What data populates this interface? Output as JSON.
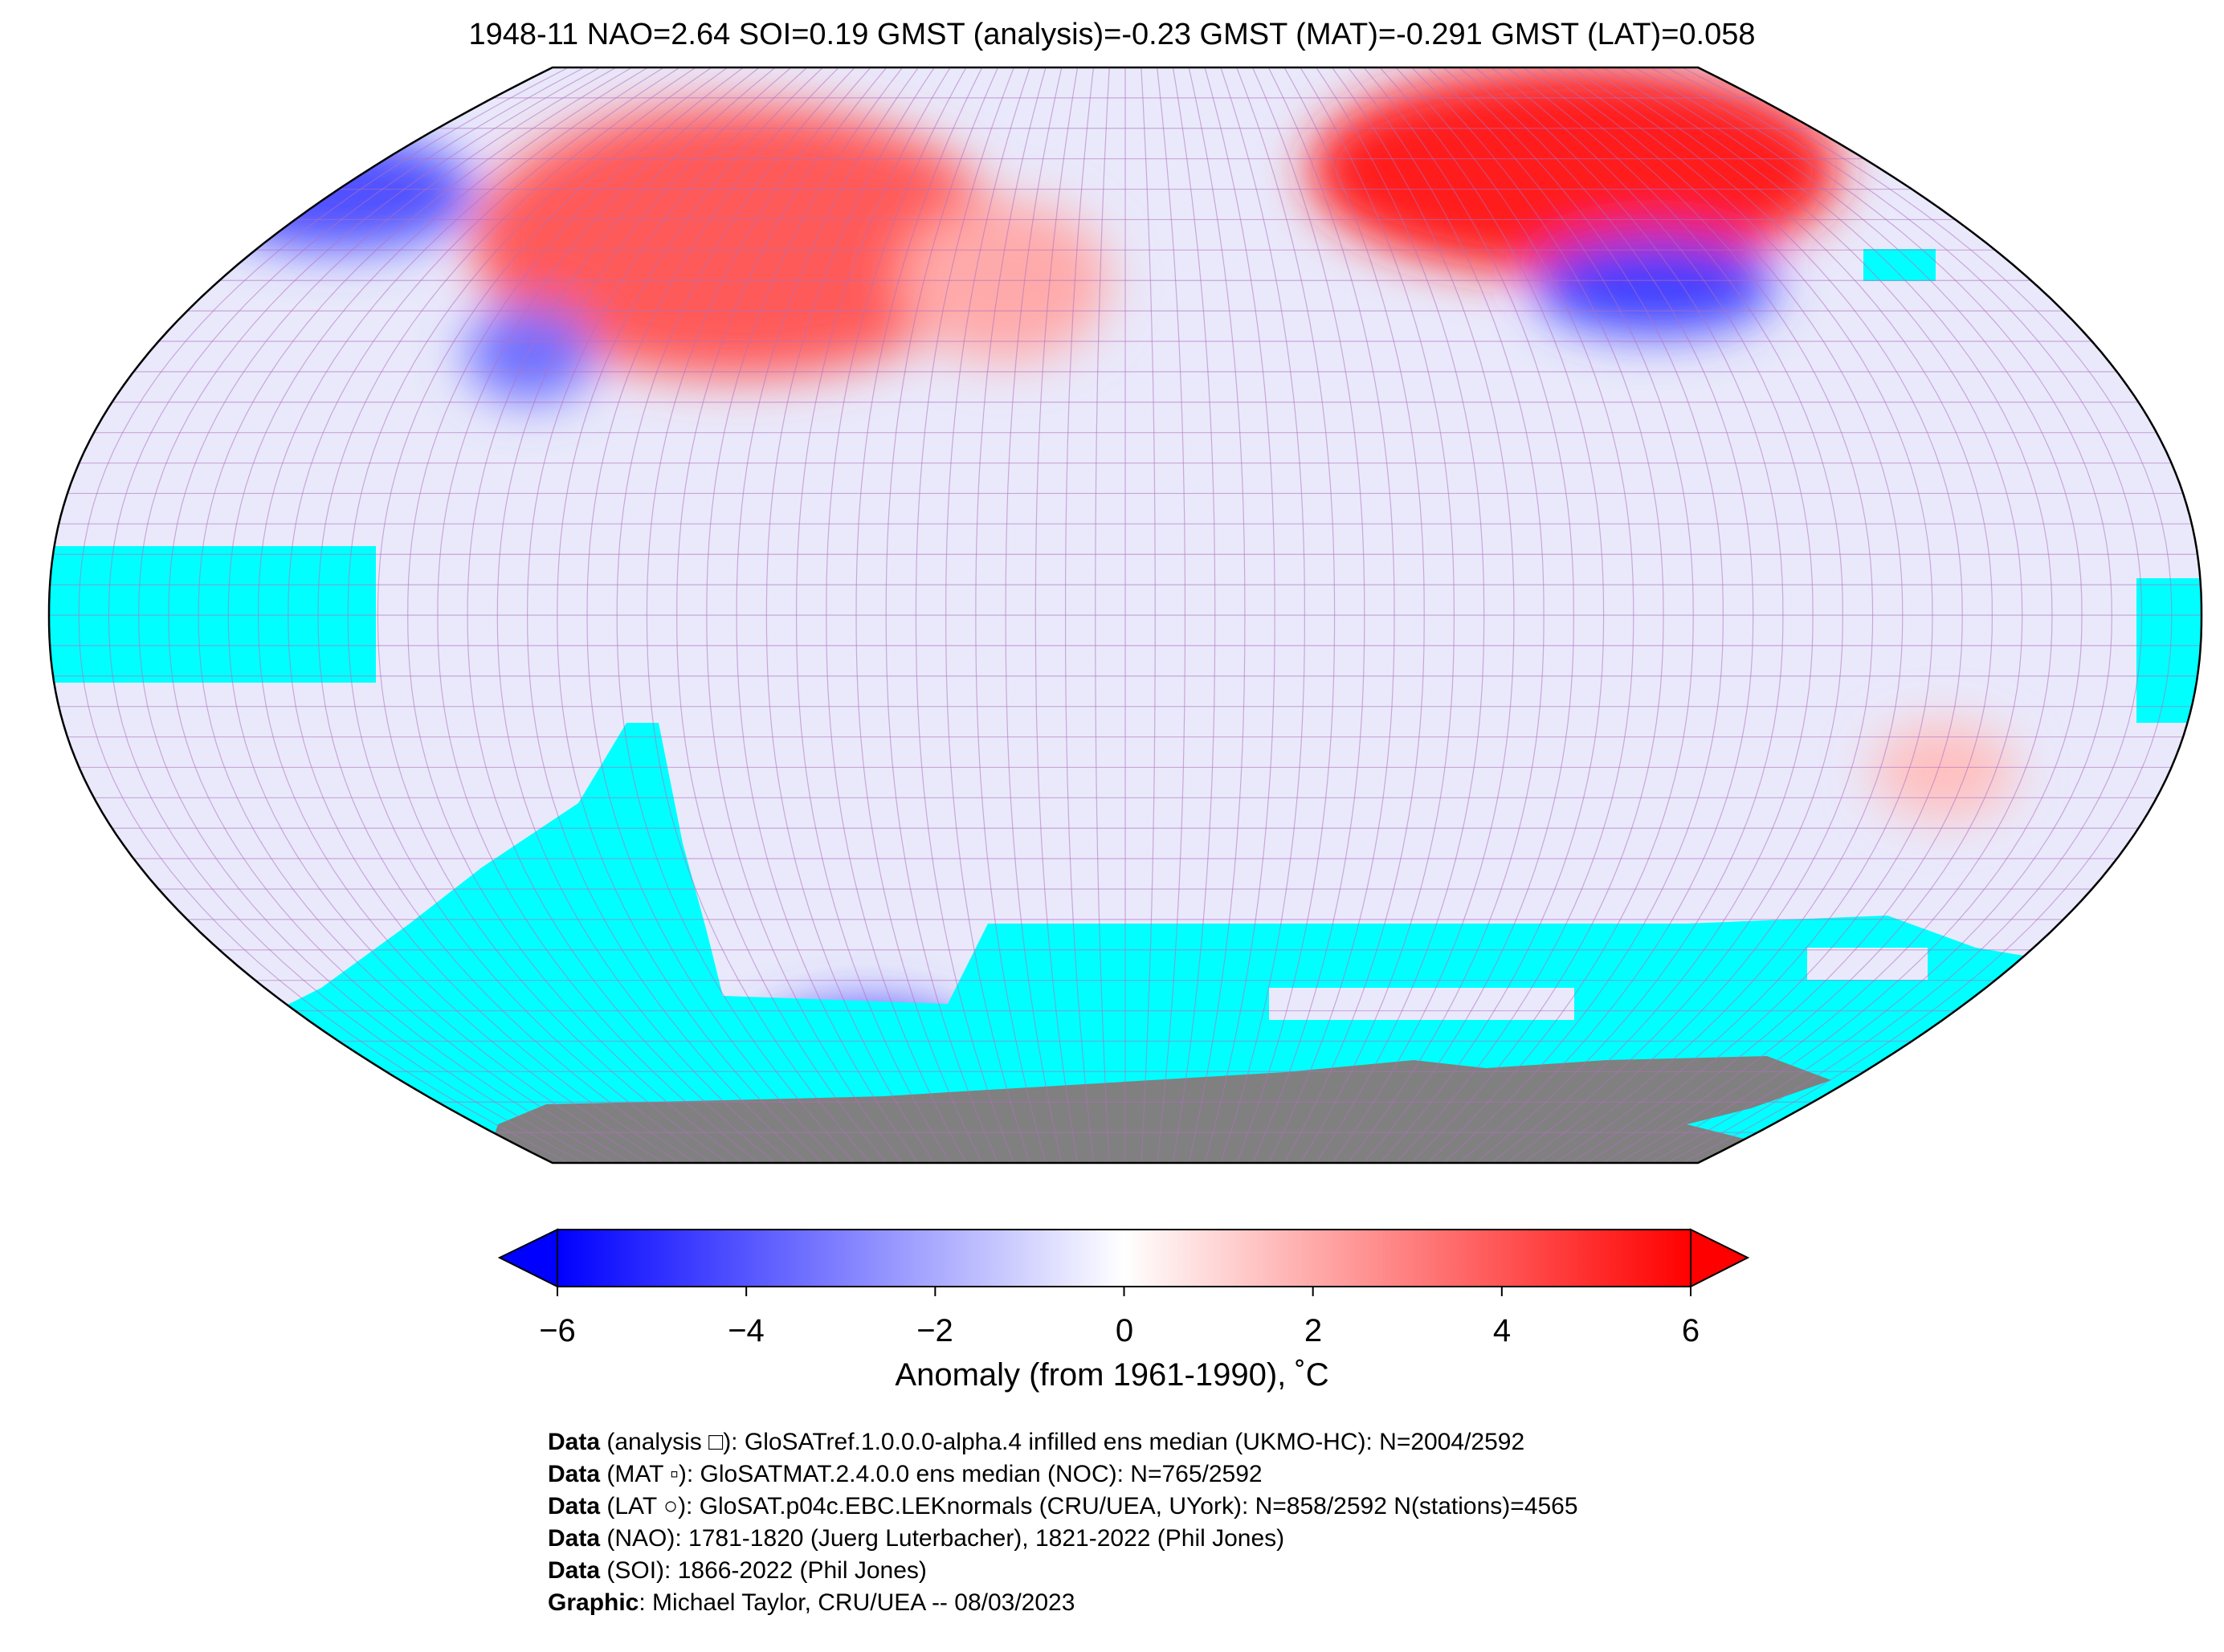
{
  "title": "1948-11 NAO=2.64 SOI=0.19 GMST (analysis)=-0.23 GMST (MAT)=-0.291 GMST (LAT)=0.058",
  "map": {
    "projection": "Robinson",
    "grid": "5x5 degree cells",
    "colors": {
      "no_data_ocean": "#00ffff",
      "antarctica": "#808080",
      "warm": "#ff0000",
      "cold": "#0000ff",
      "neutral": "#ffffff"
    }
  },
  "colorbar": {
    "ticks": [
      "−6",
      "−4",
      "−2",
      "0",
      "2",
      "4",
      "6"
    ],
    "range": [
      -6,
      6
    ],
    "extend": "both",
    "colormap": [
      "#0000ff",
      "#ffffff",
      "#ff0000"
    ],
    "label": "Anomaly (from 1961-1990), ˚C"
  },
  "footer": [
    {
      "bold": "Data",
      "text": " (analysis □): GloSATref.1.0.0.0-alpha.4 infilled ens median (UKMO-HC): N=2004/2592"
    },
    {
      "bold": "Data",
      "text": " (MAT ▫): GloSATMAT.2.4.0.0 ens median (NOC): N=765/2592"
    },
    {
      "bold": "Data",
      "text": " (LAT ○): GloSAT.p04c.EBC.LEKnormals (CRU/UEA, UYork): N=858/2592 N(stations)=4565"
    },
    {
      "bold": "Data",
      "text": " (NAO): 1781-1820 (Juerg Luterbacher), 1821-2022 (Phil Jones)"
    },
    {
      "bold": "Data",
      "text": " (SOI): 1866-2022 (Phil Jones)"
    },
    {
      "bold": "Graphic",
      "text": ": Michael Taylor, CRU/UEA -- 08/03/2023"
    }
  ]
}
